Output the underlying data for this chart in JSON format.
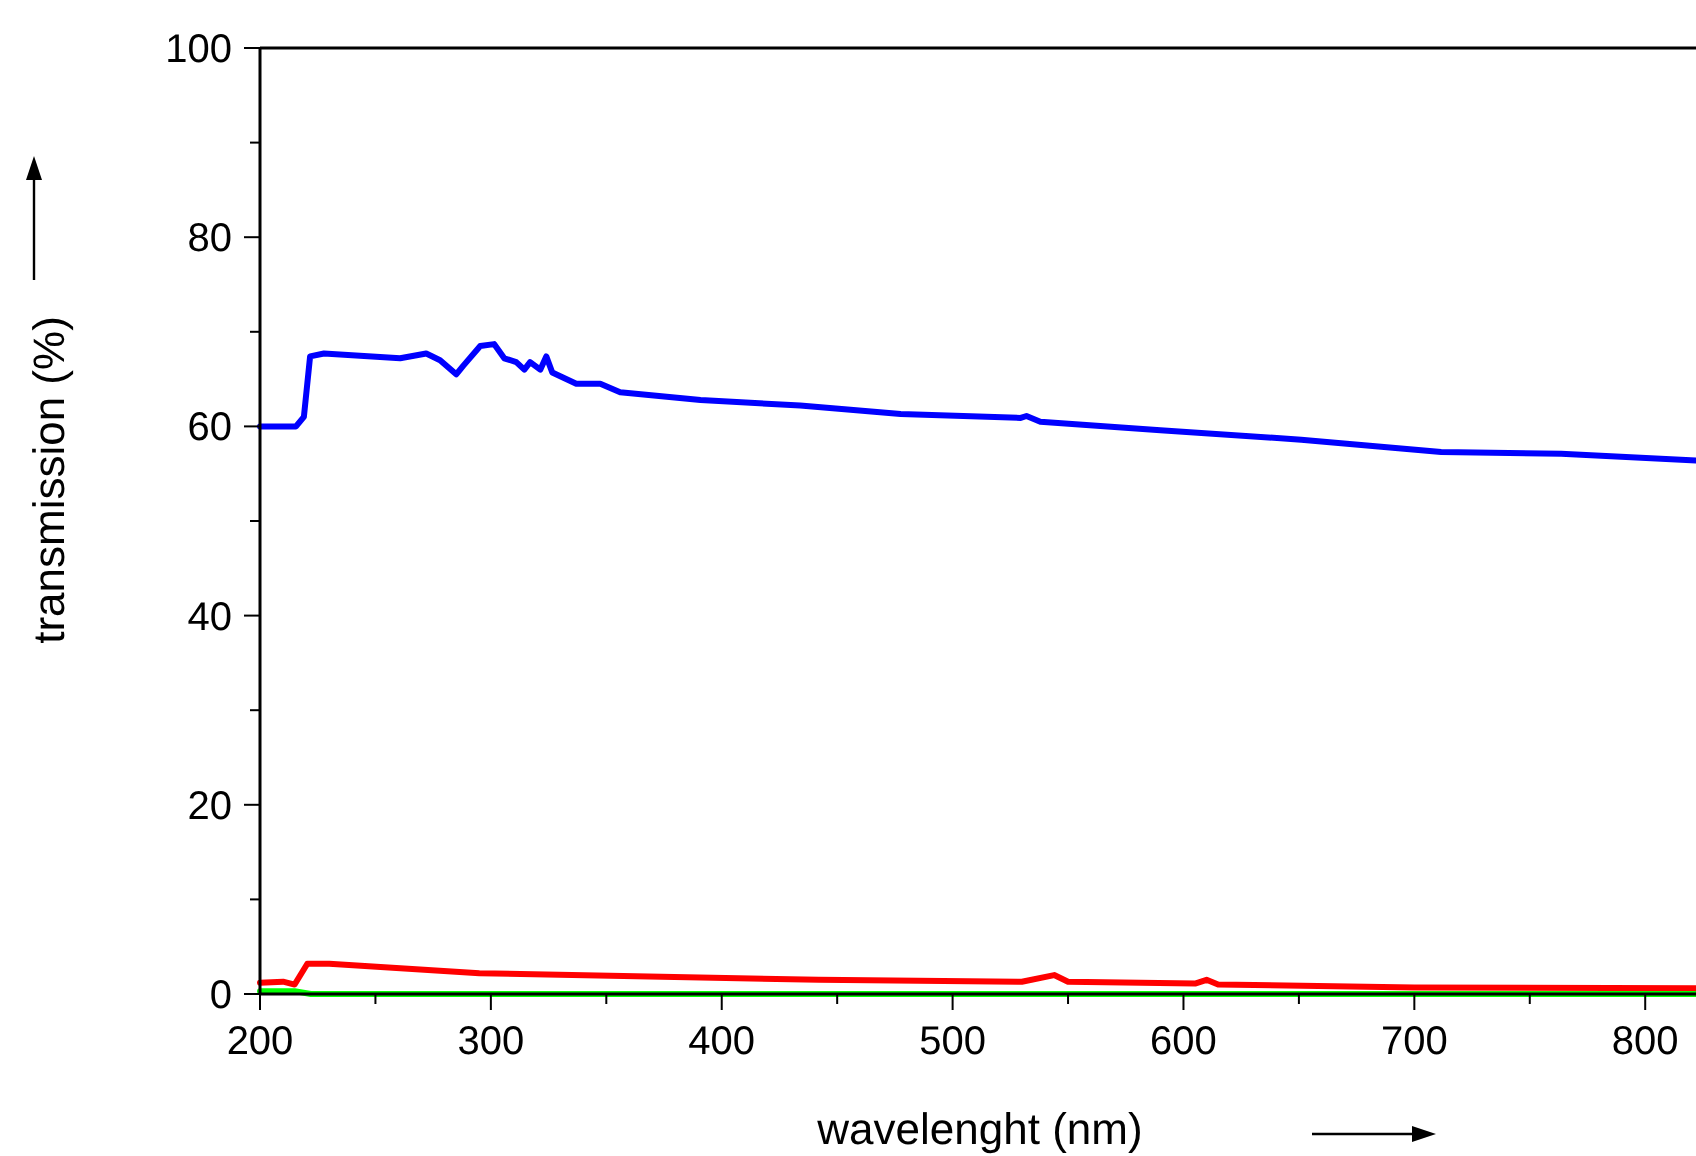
{
  "chart_data": {
    "type": "line",
    "xlabel": "wavelenght (nm)",
    "ylabel": "transmission (%)",
    "xlim": [
      200,
      822
    ],
    "ylim": [
      0,
      100
    ],
    "xticks": [
      200,
      300,
      400,
      500,
      600,
      700,
      800
    ],
    "yticks": [
      0,
      20,
      40,
      60,
      80,
      100
    ],
    "grid": false,
    "marker": "none",
    "line_style": "solid",
    "series": [
      {
        "color": "#0000ff",
        "x": [
          200,
          215.6,
          219,
          221.7,
          227.7,
          260.7,
          272,
          278,
          285,
          288,
          295.4,
          301.4,
          305.8,
          311,
          314.5,
          317,
          321.4,
          324,
          326.6,
          337,
          347.4,
          356,
          390.8,
          434,
          477.5,
          529.5,
          532,
          538,
          590,
          651,
          711.6,
          763.6,
          822
        ],
        "values": [
          60.0,
          60.0,
          61.0,
          67.4,
          67.7,
          67.2,
          67.7,
          67.0,
          65.5,
          66.4,
          68.5,
          68.7,
          67.2,
          66.8,
          66.0,
          66.8,
          66.0,
          67.4,
          65.7,
          64.5,
          64.5,
          63.6,
          62.8,
          62.2,
          61.3,
          60.9,
          61.1,
          60.5,
          59.6,
          58.6,
          57.3,
          57.1,
          56.4
        ]
      },
      {
        "color": "#ff0000",
        "x": [
          200,
          210,
          215,
          220.5,
          230,
          295,
          442,
          530,
          544,
          550,
          605,
          610,
          615,
          700,
          822
        ],
        "values": [
          1.2,
          1.3,
          1.0,
          3.2,
          3.2,
          2.2,
          1.5,
          1.3,
          2.0,
          1.3,
          1.1,
          1.5,
          1.0,
          0.7,
          0.6
        ]
      },
      {
        "color": "#00ff00",
        "x": [
          200,
          215,
          222,
          400,
          600,
          822
        ],
        "values": [
          0.3,
          0.3,
          0.0,
          0.0,
          0.0,
          0.0
        ]
      }
    ]
  }
}
